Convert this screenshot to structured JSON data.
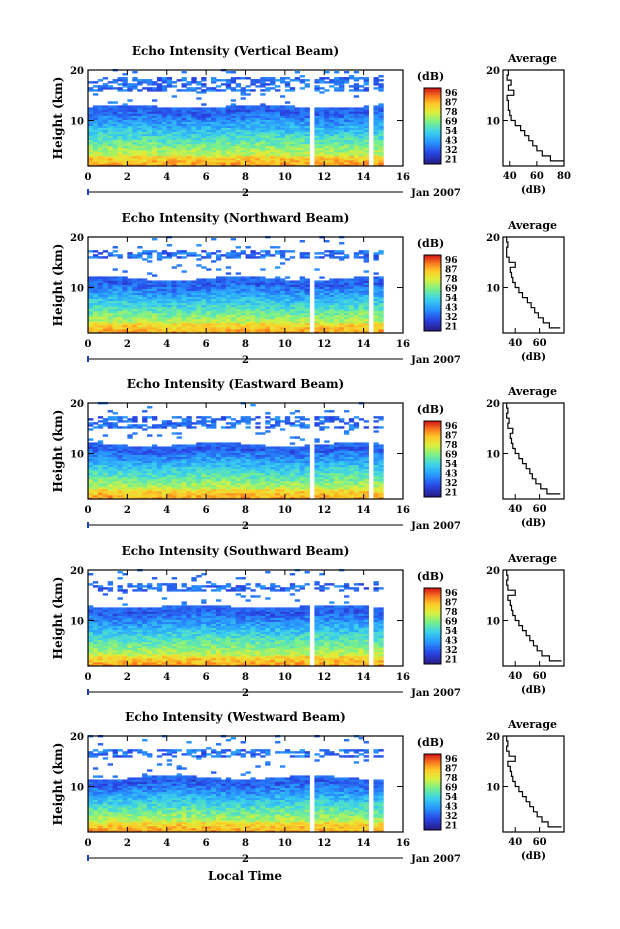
{
  "figure": {
    "xlabel": "Local Time",
    "date_label": "Jan 2007",
    "secondary_axis_label": "2"
  },
  "colorbar": {
    "unit": "(dB)",
    "ticks": [
      "96",
      "87",
      "78",
      "69",
      "54",
      "43",
      "32",
      "21"
    ]
  },
  "chart_data": [
    {
      "type": "heatmap",
      "title": "Echo Intensity (Vertical Beam)",
      "ylabel": "Height (km)",
      "xlim": [
        0,
        16
      ],
      "ylim": [
        1,
        20
      ],
      "xticks": [
        0,
        2,
        4,
        6,
        8,
        10,
        12,
        14,
        16
      ],
      "yticks": [
        10,
        20
      ],
      "data_gaps_hours": [
        [
          11.2,
          11.5
        ],
        [
          14.2,
          14.5
        ],
        [
          14.9,
          16
        ]
      ],
      "layers_km": {
        "strong_top": 12,
        "tropopause_band": [
          16,
          18
        ]
      },
      "average_profile": {
        "title": "Average",
        "xlabel": "(dB)",
        "xlim": [
          35,
          80
        ],
        "xticks": [
          40,
          60,
          80
        ],
        "height_km": [
          2,
          3,
          4,
          5,
          6,
          7,
          8,
          9,
          10,
          11,
          12,
          13,
          14,
          15,
          16,
          17,
          18,
          19,
          20
        ],
        "db": [
          80,
          70,
          64,
          60,
          57,
          54,
          51,
          48,
          44,
          41,
          40,
          39,
          39,
          38,
          43,
          39,
          41,
          38,
          39
        ]
      }
    },
    {
      "type": "heatmap",
      "title": "Echo Intensity (Northward Beam)",
      "ylabel": "Height (km)",
      "xlim": [
        0,
        16
      ],
      "ylim": [
        1,
        20
      ],
      "xticks": [
        0,
        2,
        4,
        6,
        8,
        10,
        12,
        14,
        16
      ],
      "yticks": [
        10,
        20
      ],
      "data_gaps_hours": [
        [
          11.2,
          11.5
        ],
        [
          14.2,
          14.5
        ],
        [
          14.9,
          16
        ]
      ],
      "layers_km": {
        "strong_top": 11,
        "tropopause_band": [
          16,
          17
        ]
      },
      "average_profile": {
        "title": "Average",
        "xlabel": "(dB)",
        "xlim": [
          30,
          80
        ],
        "xticks": [
          40,
          60
        ],
        "height_km": [
          2,
          3,
          4,
          5,
          6,
          7,
          8,
          9,
          10,
          11,
          12,
          13,
          14,
          15,
          16,
          17,
          18,
          19,
          20
        ],
        "db": [
          77,
          68,
          63,
          59,
          56,
          53,
          50,
          46,
          43,
          40,
          38,
          37,
          36,
          40,
          35,
          33,
          33,
          34,
          33
        ]
      }
    },
    {
      "type": "heatmap",
      "title": "Echo Intensity (Eastward Beam)",
      "ylabel": "Height (km)",
      "xlim": [
        0,
        16
      ],
      "ylim": [
        1,
        20
      ],
      "xticks": [
        0,
        2,
        4,
        6,
        8,
        10,
        12,
        14,
        16
      ],
      "yticks": [
        10,
        20
      ],
      "data_gaps_hours": [
        [
          11.2,
          11.5
        ],
        [
          14.2,
          14.5
        ],
        [
          14.9,
          16
        ]
      ],
      "layers_km": {
        "strong_top": 11,
        "tropopause_band": [
          15,
          17
        ]
      },
      "average_profile": {
        "title": "Average",
        "xlabel": "(dB)",
        "xlim": [
          30,
          80
        ],
        "xticks": [
          40,
          60
        ],
        "height_km": [
          2,
          3,
          4,
          5,
          6,
          7,
          8,
          9,
          10,
          11,
          12,
          13,
          14,
          15,
          16,
          17,
          18,
          19,
          20
        ],
        "db": [
          77,
          66,
          61,
          57,
          54,
          52,
          49,
          46,
          43,
          40,
          38,
          37,
          36,
          38,
          34,
          35,
          33,
          34,
          33
        ]
      }
    },
    {
      "type": "heatmap",
      "title": "Echo Intensity (Southward Beam)",
      "ylabel": "Height (km)",
      "xlim": [
        0,
        16
      ],
      "ylim": [
        1,
        20
      ],
      "xticks": [
        0,
        2,
        4,
        6,
        8,
        10,
        12,
        14,
        16
      ],
      "yticks": [
        10,
        20
      ],
      "data_gaps_hours": [
        [
          11.2,
          11.5
        ],
        [
          14.2,
          14.5
        ],
        [
          14.9,
          16
        ]
      ],
      "layers_km": {
        "strong_top": 12,
        "tropopause_band": [
          16,
          17
        ]
      },
      "average_profile": {
        "title": "Average",
        "xlabel": "(dB)",
        "xlim": [
          30,
          80
        ],
        "xticks": [
          40,
          60
        ],
        "height_km": [
          2,
          3,
          4,
          5,
          6,
          7,
          8,
          9,
          10,
          11,
          12,
          13,
          14,
          15,
          16,
          17,
          18,
          19,
          20
        ],
        "db": [
          78,
          68,
          62,
          58,
          55,
          52,
          49,
          46,
          43,
          40,
          38,
          37,
          36,
          34,
          40,
          34,
          33,
          34,
          33
        ]
      }
    },
    {
      "type": "heatmap",
      "title": "Echo Intensity (Westward Beam)",
      "ylabel": "Height (km)",
      "xlim": [
        0,
        16
      ],
      "ylim": [
        1,
        20
      ],
      "xticks": [
        0,
        2,
        4,
        6,
        8,
        10,
        12,
        14,
        16
      ],
      "yticks": [
        10,
        20
      ],
      "data_gaps_hours": [
        [
          11.2,
          11.5
        ],
        [
          14.2,
          14.5
        ],
        [
          14.9,
          16
        ]
      ],
      "layers_km": {
        "strong_top": 11,
        "tropopause_band": [
          16,
          17
        ]
      },
      "average_profile": {
        "title": "Average",
        "xlabel": "(dB)",
        "xlim": [
          30,
          80
        ],
        "xticks": [
          40,
          60
        ],
        "height_km": [
          2,
          3,
          4,
          5,
          6,
          7,
          8,
          9,
          10,
          11,
          12,
          13,
          14,
          15,
          16,
          17,
          18,
          19,
          20
        ],
        "db": [
          78,
          67,
          62,
          58,
          55,
          52,
          49,
          46,
          43,
          40,
          38,
          37,
          36,
          34,
          40,
          35,
          33,
          34,
          33
        ]
      }
    }
  ]
}
